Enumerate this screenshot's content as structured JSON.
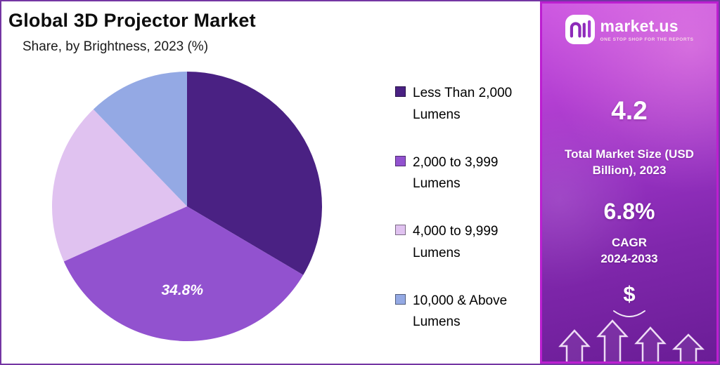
{
  "page": {
    "background": "#ffffff",
    "outer_border_color": "#7436a3"
  },
  "chart": {
    "title": "Global 3D Projector Market",
    "subtitle": "Share, by Brightness, 2023 (%)"
  },
  "chart_data": {
    "type": "pie",
    "title": "Global 3D Projector Market",
    "subtitle": "Share, by Brightness, 2023 (%)",
    "unit": "%",
    "labels": [
      "Less Than 2,000 Lumens",
      "2,000 to 3,999 Lumens",
      "4,000 to 9,999 Lumens",
      "10,000 & Above Lumens"
    ],
    "values": [
      33.5,
      34.8,
      19.5,
      12.2
    ],
    "value_labels": [
      "",
      "34.8%",
      "",
      ""
    ],
    "colors": [
      "#4a2183",
      "#9252cf",
      "#e0c2f0",
      "#94a9e4"
    ],
    "start_angle": 0,
    "direction": "clockwise",
    "legend_position": "right"
  },
  "legend": {
    "items": [
      {
        "line1": "Less Than 2,000",
        "line2": "Lumens",
        "color": "#4a2183"
      },
      {
        "line1": "2,000 to 3,999",
        "line2": "Lumens",
        "color": "#9252cf"
      },
      {
        "line1": "4,000 to 9,999",
        "line2": "Lumens",
        "color": "#e0c2f0"
      },
      {
        "line1": "10,000 & Above",
        "line2": "Lumens",
        "color": "#94a9e4"
      }
    ]
  },
  "sidebar": {
    "brand_name": "market.us",
    "brand_tagline": "ONE STOP SHOP FOR THE REPORTS",
    "stat_market_size_value": "4.2",
    "stat_market_size_label": "Total Market Size (USD Billion), 2023",
    "stat_cagr_value": "6.8%",
    "stat_cagr_label_line1": "CAGR",
    "stat_cagr_label_line2": "2024-2033",
    "dollar_symbol": "$",
    "accent_border_color": "#bc1fd0"
  }
}
